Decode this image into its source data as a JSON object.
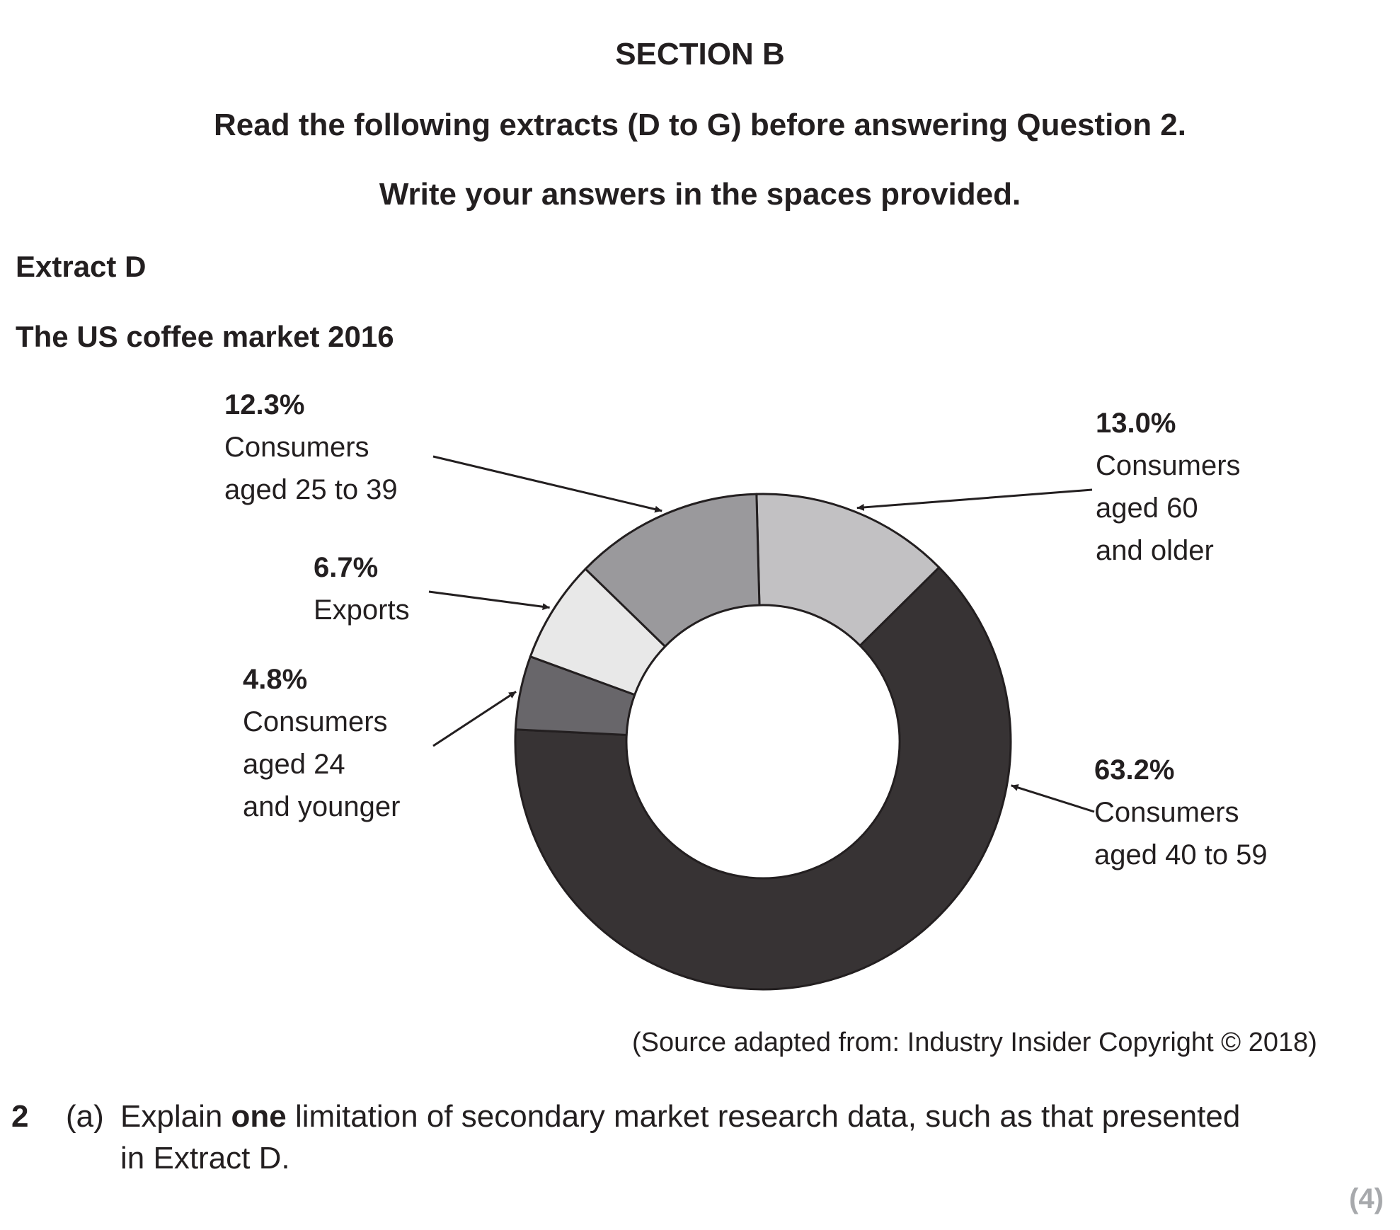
{
  "header": {
    "section": "SECTION B",
    "instruction_1": "Read the following extracts (D to G) before answering Question 2.",
    "instruction_2": "Write your answers in the spaces provided."
  },
  "extract": {
    "label": "Extract D",
    "title": "The US coffee market 2016"
  },
  "chart_data": {
    "type": "pie",
    "variant": "donut",
    "title": "The US coffee market 2016",
    "start_slice": "Consumers aged 60 and older",
    "direction": "clockwise",
    "slices": [
      {
        "pct_label": "13.0%",
        "value": 13.0,
        "lines": [
          "Consumers",
          "aged 60",
          "and older"
        ],
        "color": "#c2c1c3"
      },
      {
        "pct_label": "63.2%",
        "value": 63.2,
        "lines": [
          "Consumers",
          "aged 40 to 59"
        ],
        "color": "#373334"
      },
      {
        "pct_label": "4.8%",
        "value": 4.8,
        "lines": [
          "Consumers",
          "aged 24",
          "and younger"
        ],
        "color": "#68666a"
      },
      {
        "pct_label": "6.7%",
        "value": 6.7,
        "lines": [
          "Exports"
        ],
        "color": "#e8e8e8"
      },
      {
        "pct_label": "12.3%",
        "value": 12.3,
        "lines": [
          "Consumers",
          "aged 25 to 39"
        ],
        "color": "#9a999c"
      }
    ],
    "source": "(Source adapted from: Industry Insider Copyright © 2018)"
  },
  "question": {
    "number": "2",
    "part": "(a)",
    "text_before": "Explain ",
    "emphasis": "one",
    "text_after": " limitation of secondary market research data, such as that presented",
    "text_line2": "in Extract D.",
    "marks": "(4)"
  },
  "colors": {
    "text": "#231f20",
    "marks": "#a7a9ac",
    "outline": "#231f20"
  }
}
